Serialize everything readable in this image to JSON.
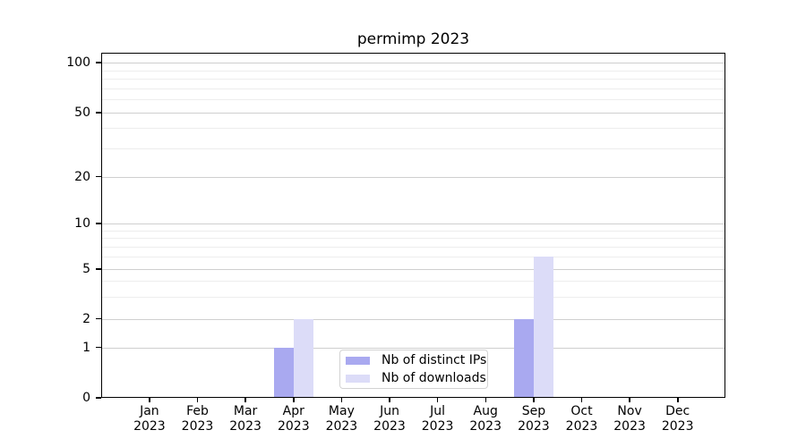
{
  "chart_data": {
    "type": "bar",
    "title": "permimp 2023",
    "categories": [
      "Jan",
      "Feb",
      "Mar",
      "Apr",
      "May",
      "Jun",
      "Jul",
      "Aug",
      "Sep",
      "Oct",
      "Nov",
      "Dec"
    ],
    "x_year_label": "2023",
    "series": [
      {
        "name": "Nb of distinct IPs",
        "color": "#a9a9f0",
        "values": [
          0,
          0,
          0,
          1,
          0,
          0,
          0,
          0,
          2,
          0,
          0,
          0
        ]
      },
      {
        "name": "Nb of downloads",
        "color": "#dcdcf8",
        "values": [
          0,
          0,
          0,
          2,
          0,
          0,
          0,
          0,
          6,
          0,
          0,
          0
        ]
      }
    ],
    "y_axis": {
      "major_ticks": [
        0,
        1,
        2,
        5,
        10,
        20,
        50,
        100
      ],
      "minor_gridlines": [
        3,
        4,
        6,
        7,
        8,
        9,
        30,
        40,
        60,
        70,
        80,
        90
      ],
      "range": [
        0,
        120
      ],
      "scale": "log-like with linear 0-1 segment"
    },
    "grid": "horizontal",
    "legend_position": "lower-center",
    "colors": {
      "major_grid": "#cfcfcf",
      "minor_grid": "#ededed",
      "axis": "#000000",
      "background": "#ffffff"
    }
  }
}
